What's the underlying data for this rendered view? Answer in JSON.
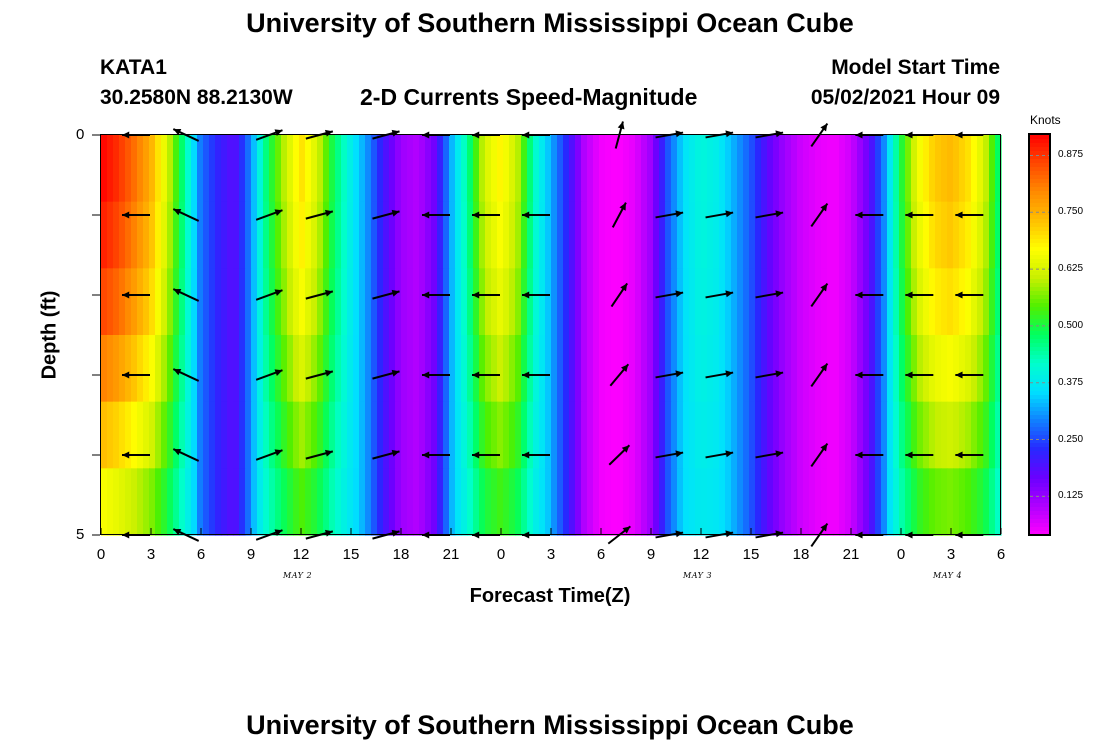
{
  "header": {
    "title_top": "University of Southern Mississippi Ocean Cube",
    "title_bottom": "University of Southern Mississippi Ocean Cube",
    "station": "KATA1",
    "coords": "30.2580N  88.2130W",
    "plot_title": "2-D Currents Speed-Magnitude",
    "model_label": "Model Start Time",
    "model_time": "05/02/2021 Hour 09"
  },
  "colorbar": {
    "unit": "Knots",
    "ticks": [
      "0.875",
      "0.750",
      "0.625",
      "0.500",
      "0.375",
      "0.250",
      "0.125"
    ],
    "range": [
      0.04,
      0.92
    ],
    "colors": [
      "#ff00ff",
      "#b000ff",
      "#6a00ff",
      "#2828ff",
      "#1080ff",
      "#00e0ff",
      "#00ffcc",
      "#00ff60",
      "#50f000",
      "#c8f000",
      "#ffff00",
      "#ffc000",
      "#ff8a00",
      "#ff4800",
      "#ff0000"
    ]
  },
  "axes": {
    "x_title": "Forecast Time(Z)",
    "y_title": "Depth (ft)",
    "y_ticks": [
      "0",
      "5"
    ],
    "x_ticks": [
      "0",
      "3",
      "6",
      "9",
      "12",
      "15",
      "18",
      "21",
      "0",
      "3",
      "6",
      "9",
      "12",
      "15",
      "18",
      "21",
      "0",
      "3",
      "6"
    ],
    "date_labels": [
      "MAY 2",
      "MAY 3",
      "MAY 4"
    ]
  },
  "chart_data": {
    "type": "heatmap",
    "title": "2-D Currents Speed-Magnitude",
    "xlabel": "Forecast Time(Z)",
    "ylabel": "Depth (ft)",
    "units": "Knots",
    "x_hours_from_start": [
      0,
      54
    ],
    "depth_range_ft": [
      0,
      5
    ],
    "depth_levels_ft": [
      0,
      1,
      2,
      3,
      4,
      5
    ],
    "surface_speed_profile": [
      0.92,
      0.88,
      0.82,
      0.75,
      0.62,
      0.45,
      0.28,
      0.22,
      0.18,
      0.3,
      0.48,
      0.6,
      0.7,
      0.62,
      0.48,
      0.38,
      0.3,
      0.2,
      0.12,
      0.1,
      0.16,
      0.32,
      0.45,
      0.62,
      0.68,
      0.6,
      0.42,
      0.32,
      0.22,
      0.1,
      0.05,
      0.04,
      0.06,
      0.12,
      0.26,
      0.36,
      0.4,
      0.38,
      0.32,
      0.26,
      0.18,
      0.12,
      0.08,
      0.06,
      0.05,
      0.08,
      0.16,
      0.3,
      0.5,
      0.65,
      0.72,
      0.74,
      0.7,
      0.62,
      0.45
    ],
    "depth_factors": [
      1.0,
      0.96,
      0.9,
      0.8,
      0.68,
      0.55
    ],
    "vector_times_h": [
      1.5,
      4.5,
      9.5,
      12.5,
      16.5,
      19.5,
      22.5,
      25.5,
      30.5,
      33.5,
      36.5,
      39.5,
      42.5,
      45.5,
      48.5,
      51.5
    ],
    "vector_directions_deg": [
      180,
      155,
      20,
      15,
      15,
      180,
      180,
      180,
      75,
      10,
      10,
      10,
      55,
      180,
      180,
      180
    ]
  }
}
